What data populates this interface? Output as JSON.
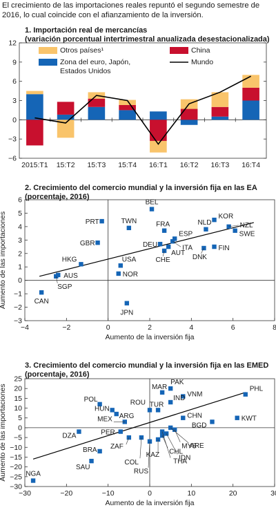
{
  "intro": "El crecimiento de las importaciones reales repuntó el segundo semestre de 2016, lo cual coincide con el afianzamiento de la inversión.",
  "colors": {
    "otros": "#f9c46b",
    "china": "#c8102e",
    "euro": "#1565b6",
    "mundo": "#000000",
    "point": "#1565b6",
    "fit": "#000000"
  },
  "chart_data": [
    {
      "type": "bar",
      "title": "1. Importación real de mercancías",
      "subtitle": "(variación porcentual intertrimestral anualizada desestacionalizada)",
      "categories": [
        "2015:T1",
        "15:T2",
        "15:T3",
        "15:T4",
        "16:T1",
        "16:T2",
        "16:T3",
        "16:T4"
      ],
      "stacked": true,
      "ylim": [
        -6,
        12
      ],
      "yticks": [
        -6,
        -3,
        0,
        3,
        6,
        9,
        12
      ],
      "legend": [
        "Otros países¹",
        "China",
        "Zona del euro, Japón,",
        "Mundo",
        "Estados Unidos"
      ],
      "series": [
        {
          "name": "Zona del euro, Japón, Estados Unidos",
          "values": [
            4.0,
            0.8,
            2.0,
            1.5,
            1.3,
            -0.8,
            0.5,
            3.0
          ]
        },
        {
          "name": "China",
          "values": [
            -4.0,
            2.0,
            1.3,
            0.8,
            -3.3,
            1.7,
            1.5,
            2.0
          ]
        },
        {
          "name": "Otros países¹",
          "values": [
            0.5,
            -2.8,
            1.0,
            0.8,
            -1.8,
            1.5,
            2.3,
            2.0
          ]
        },
        {
          "name": "Mundo",
          "kind": "line",
          "values": [
            0.3,
            -0.5,
            3.8,
            3.0,
            -3.8,
            2.5,
            4.3,
            6.8
          ]
        }
      ]
    },
    {
      "type": "scatter",
      "title": "2. Crecimiento del comercio mundial y la inversión fija en las EA",
      "subtitle": "(porcentaje, 2016)",
      "xlabel": "Aumento de la inversión fija",
      "ylabel": "Aumento de las importaciones",
      "xlim": [
        -4,
        8
      ],
      "ylim": [
        -3,
        6
      ],
      "xticks": [
        -4,
        -2,
        0,
        2,
        4,
        6,
        8
      ],
      "yticks": [
        -3,
        -2,
        -1,
        0,
        1,
        2,
        3,
        4,
        5,
        6
      ],
      "trendline": [
        [
          -3.3,
          0.3
        ],
        [
          7.0,
          4.3
        ]
      ],
      "points": [
        {
          "label": "BEL",
          "x": 2.1,
          "y": 5.3
        },
        {
          "label": "PRT",
          "x": -0.3,
          "y": 4.4
        },
        {
          "label": "TWN",
          "x": 1.0,
          "y": 3.9
        },
        {
          "label": "NLD",
          "x": 4.7,
          "y": 3.8
        },
        {
          "label": "KOR",
          "x": 5.1,
          "y": 4.5
        },
        {
          "label": "NZL",
          "x": 5.8,
          "y": 4.0
        },
        {
          "label": "SWE",
          "x": 6.1,
          "y": 3.7
        },
        {
          "label": "FRA",
          "x": 2.7,
          "y": 3.7
        },
        {
          "label": "ESP",
          "x": 3.2,
          "y": 3.1
        },
        {
          "label": "DEU",
          "x": 2.5,
          "y": 2.7
        },
        {
          "label": "ITA",
          "x": 3.1,
          "y": 2.9
        },
        {
          "label": "GBR",
          "x": -0.5,
          "y": 2.8
        },
        {
          "label": "AUT",
          "x": 2.9,
          "y": 2.5
        },
        {
          "label": "CHE",
          "x": 2.7,
          "y": 2.2
        },
        {
          "label": "DNK",
          "x": 4.6,
          "y": 2.4
        },
        {
          "label": "FIN",
          "x": 5.1,
          "y": 2.5
        },
        {
          "label": "HKG",
          "x": -1.3,
          "y": 1.2
        },
        {
          "label": "USA",
          "x": 0.6,
          "y": 1.1
        },
        {
          "label": "NOR",
          "x": 0.5,
          "y": 0.5
        },
        {
          "label": "AUS",
          "x": -2.4,
          "y": 0.4
        },
        {
          "label": "SGP",
          "x": -2.5,
          "y": 0.3
        },
        {
          "label": "CAN",
          "x": -3.2,
          "y": -0.9
        },
        {
          "label": "JPN",
          "x": 0.9,
          "y": -1.7
        }
      ]
    },
    {
      "type": "scatter",
      "title": "3. Crecimiento del comercio mundial y la inversión fija en las EMED",
      "subtitle": "(porcentaje, 2016)",
      "xlabel": "Aumento de la inversión fija",
      "ylabel": "Aumento de las importaciones",
      "xlim": [
        -30,
        30
      ],
      "ylim": [
        -30,
        25
      ],
      "xticks": [
        -30,
        -20,
        -10,
        0,
        10,
        20,
        30
      ],
      "yticks": [
        -30,
        -25,
        -20,
        -15,
        -10,
        -5,
        0,
        5,
        10,
        15,
        20,
        25
      ],
      "trendline": [
        [
          -28,
          -16
        ],
        [
          23,
          18
        ]
      ],
      "points": [
        {
          "label": "PHL",
          "x": 23,
          "y": 17
        },
        {
          "label": "KWT",
          "x": 21,
          "y": 5
        },
        {
          "label": "BGD",
          "x": 15,
          "y": 3
        },
        {
          "label": "MAR",
          "x": 3,
          "y": 18
        },
        {
          "label": "PAK",
          "x": 5,
          "y": 20
        },
        {
          "label": "VNM",
          "x": 8,
          "y": 16
        },
        {
          "label": "IND",
          "x": 5,
          "y": 13
        },
        {
          "label": "TUR",
          "x": 2,
          "y": 9
        },
        {
          "label": "ROU",
          "x": 0,
          "y": 9
        },
        {
          "label": "POL",
          "x": -12,
          "y": 12
        },
        {
          "label": "HUN",
          "x": -9,
          "y": 9
        },
        {
          "label": "ARG",
          "x": -8,
          "y": 7
        },
        {
          "label": "CHN",
          "x": 8,
          "y": 5
        },
        {
          "label": "MEX",
          "x": -6,
          "y": 3
        },
        {
          "label": "DZA",
          "x": -17,
          "y": -2
        },
        {
          "label": "PER",
          "x": -7,
          "y": -2
        },
        {
          "label": "ZAF",
          "x": -5,
          "y": -5
        },
        {
          "label": "BRA",
          "x": -12,
          "y": -12
        },
        {
          "label": "SAU",
          "x": -14,
          "y": -17
        },
        {
          "label": "COL",
          "x": -2,
          "y": -5
        },
        {
          "label": "RUS",
          "x": 0,
          "y": -7
        },
        {
          "label": "CHL",
          "x": 3,
          "y": -4
        },
        {
          "label": "KAZ",
          "x": 2,
          "y": -6
        },
        {
          "label": "MYS",
          "x": 6,
          "y": -1
        },
        {
          "label": "ARE",
          "x": 5,
          "y": 0
        },
        {
          "label": "IDN",
          "x": 4,
          "y": -3
        },
        {
          "label": "THA",
          "x": 3,
          "y": -2
        },
        {
          "label": "NGA",
          "x": -28,
          "y": -27
        }
      ]
    }
  ]
}
